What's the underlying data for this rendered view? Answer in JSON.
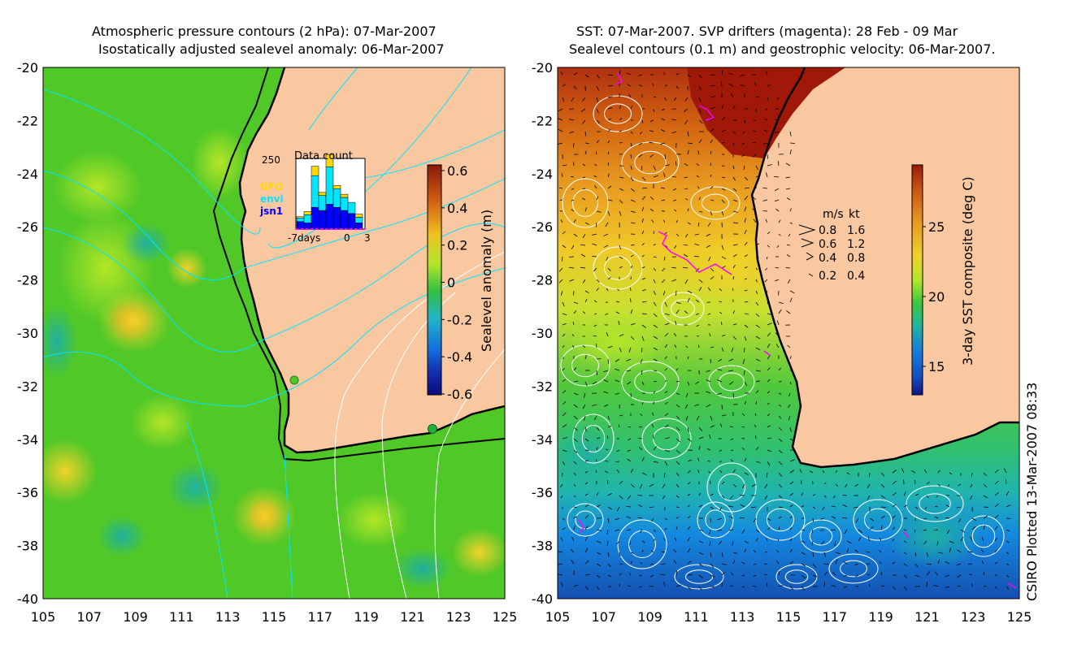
{
  "left_panel": {
    "title_line1": "Atmospheric pressure contours (2 hPa): 07-Mar-2007",
    "title_line2": "Isostatically adjusted sealevel anomaly: 06-Mar-2007",
    "inset": {
      "title": "Data count",
      "ymax_label": "250",
      "legend": [
        {
          "label": "GFO",
          "color": "#ffd700"
        },
        {
          "label": "envi",
          "color": "#00e5ff"
        },
        {
          "label": "jsn1",
          "color": "#0000ff"
        }
      ],
      "x_labels": {
        "left": "-7days",
        "zero": "0",
        "right": "3"
      }
    },
    "colorbar": {
      "label": "Sealevel anomaly (m)",
      "ticks": [
        "0.6",
        "0.4",
        "0.2",
        "0",
        "-0.2",
        "-0.4",
        "-0.6"
      ]
    }
  },
  "right_panel": {
    "title_line1": "SST: 07-Mar-2007. SVP drifters (magenta): 28 Feb - 09 Mar",
    "title_line2": "Sealevel contours (0.1 m) and geostrophic velocity: 06-Mar-2007.",
    "speed_legend": {
      "header_ms": "m/s",
      "header_kt": "kt",
      "rows": [
        {
          "ms": "0.8",
          "kt": "1.6"
        },
        {
          "ms": "0.6",
          "kt": "1.2"
        },
        {
          "ms": "0.4",
          "kt": "0.8"
        },
        {
          "ms": "0.2",
          "kt": "0.4"
        }
      ]
    },
    "colorbar": {
      "label": "3-day SST composite (deg C)",
      "ticks": [
        "25",
        "20",
        "15"
      ]
    }
  },
  "axes": {
    "y_ticks": [
      "-20",
      "-22",
      "-24",
      "-26",
      "-28",
      "-30",
      "-32",
      "-34",
      "-36",
      "-38",
      "-40"
    ],
    "x_ticks": [
      "105",
      "107",
      "109",
      "111",
      "113",
      "115",
      "117",
      "119",
      "121",
      "123",
      "125"
    ]
  },
  "credit": "CSIRO Plotted 13-Mar-2007 08:33",
  "colors": {
    "land": "#fac8a0",
    "sea_anomaly_base": "#50c828",
    "coast": "#000000",
    "pressure_contour": "#00e5ff",
    "drifter": "#ff00ff"
  }
}
